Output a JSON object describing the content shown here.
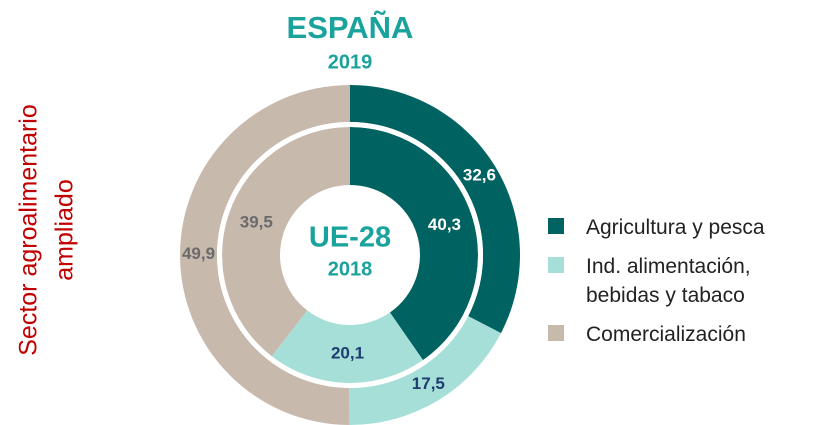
{
  "chart_data": {
    "type": "donut",
    "title": "ESPAÑA",
    "subtitle": "2019",
    "center_title": "UE-28",
    "center_subtitle": "2018",
    "side_label": [
      "Sector agroalimentario",
      "ampliado"
    ],
    "categories": [
      "Agricultura y pesca",
      "Ind. alimentación, bebidas y tabaco",
      "Comercialización"
    ],
    "colors": [
      "#006361",
      "#a6dfd8",
      "#c8b9ad"
    ],
    "label_colors": [
      "#ffffff",
      "#1f3d6e",
      "#6b6b6b"
    ],
    "series": [
      {
        "values": [
          32.6,
          17.5,
          49.9
        ],
        "value_labels": [
          "32,6",
          "17,5",
          "49,9"
        ]
      },
      {
        "values": [
          40.3,
          20.1,
          39.5
        ],
        "value_labels": [
          "40,3",
          "20,1",
          "39,5"
        ]
      }
    ]
  }
}
